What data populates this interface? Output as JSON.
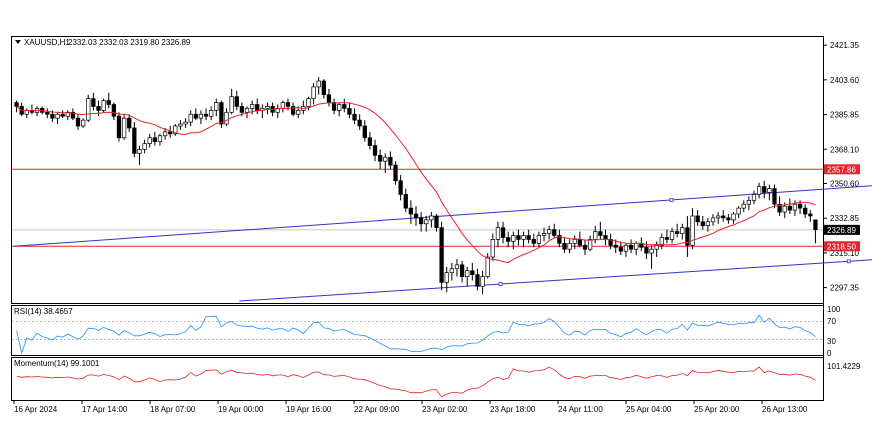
{
  "header": {
    "symbol": "XAUUSD,H1",
    "ohlc": "2332.03 2332.03 2319.80 2326.89"
  },
  "price_axis": {
    "ticks": [
      "2421.35",
      "2403.60",
      "2385.85",
      "2368.10",
      "2350.60",
      "2332.85",
      "2315.10",
      "2297.35"
    ],
    "tick_values": [
      2421.35,
      2403.6,
      2385.85,
      2368.1,
      2350.6,
      2332.85,
      2315.1,
      2297.35
    ],
    "markers": [
      {
        "label": "2357.86",
        "value": 2357.86,
        "color": "#e3242b",
        "text_color": "#ffffff"
      },
      {
        "label": "2326.89",
        "value": 2326.89,
        "color": "#000000",
        "text_color": "#ffffff"
      },
      {
        "label": "2318.50",
        "value": 2318.5,
        "color": "#e3242b",
        "text_color": "#ffffff"
      }
    ]
  },
  "rsi": {
    "label": "RSI(14) 38.4657",
    "ticks": [
      "100",
      "70",
      "30",
      "0"
    ],
    "color": "#1e90ff"
  },
  "momentum": {
    "label": "Momentum(14) 99.1001",
    "ticks": [
      "101.4229"
    ],
    "color": "#e3242b"
  },
  "time_axis": [
    "16 Apr 2024",
    "17 Apr 14:00",
    "18 Apr 07:00",
    "19 Apr 00:00",
    "19 Apr 16:00",
    "22 Apr 09:00",
    "23 Apr 02:00",
    "23 Apr 18:00",
    "24 Apr 11:00",
    "25 Apr 04:00",
    "25 Apr 20:00",
    "26 Apr 13:00"
  ],
  "colors": {
    "channel": "#3333cc",
    "hline": "#e3242b",
    "ma": "#e3242b"
  },
  "chart_data": {
    "type": "candlestick",
    "hlines": [
      2357.86,
      2318.5
    ],
    "current_price": 2326.89,
    "ylim": [
      2290,
      2425
    ],
    "channel": {
      "upper": [
        [
          0,
          2318.5
        ],
        [
          214,
          2358.0
        ]
      ],
      "lower": [
        [
          44,
          2290.5
        ],
        [
          214,
          2319.5
        ]
      ]
    },
    "ohlc": [
      [
        2392,
        2393,
        2387,
        2390
      ],
      [
        2390,
        2392,
        2385,
        2386
      ],
      [
        2386,
        2389,
        2384,
        2388
      ],
      [
        2388,
        2391,
        2386,
        2387
      ],
      [
        2387,
        2390,
        2385,
        2389
      ],
      [
        2389,
        2390,
        2386,
        2387
      ],
      [
        2387,
        2389,
        2384,
        2386
      ],
      [
        2386,
        2388,
        2382,
        2384
      ],
      [
        2384,
        2387,
        2381,
        2386
      ],
      [
        2386,
        2388,
        2384,
        2385
      ],
      [
        2385,
        2388,
        2383,
        2387
      ],
      [
        2387,
        2389,
        2383,
        2384
      ],
      [
        2384,
        2386,
        2378,
        2380
      ],
      [
        2380,
        2384,
        2379,
        2383
      ],
      [
        2383,
        2396,
        2382,
        2394
      ],
      [
        2394,
        2397,
        2388,
        2390
      ],
      [
        2390,
        2393,
        2385,
        2388
      ],
      [
        2388,
        2394,
        2387,
        2393
      ],
      [
        2393,
        2397,
        2389,
        2391
      ],
      [
        2391,
        2392,
        2383,
        2385
      ],
      [
        2385,
        2387,
        2372,
        2374
      ],
      [
        2374,
        2386,
        2373,
        2384
      ],
      [
        2384,
        2386,
        2377,
        2379
      ],
      [
        2379,
        2382,
        2364,
        2366
      ],
      [
        2366,
        2370,
        2360,
        2368
      ],
      [
        2368,
        2373,
        2366,
        2371
      ],
      [
        2371,
        2376,
        2369,
        2374
      ],
      [
        2374,
        2377,
        2370,
        2372
      ],
      [
        2372,
        2376,
        2370,
        2375
      ],
      [
        2375,
        2379,
        2373,
        2377
      ],
      [
        2377,
        2380,
        2374,
        2376
      ],
      [
        2376,
        2381,
        2375,
        2380
      ],
      [
        2380,
        2383,
        2378,
        2381
      ],
      [
        2381,
        2384,
        2379,
        2382
      ],
      [
        2382,
        2388,
        2380,
        2386
      ],
      [
        2386,
        2389,
        2383,
        2384
      ],
      [
        2384,
        2388,
        2381,
        2386
      ],
      [
        2386,
        2389,
        2383,
        2385
      ],
      [
        2385,
        2390,
        2383,
        2388
      ],
      [
        2388,
        2394,
        2385,
        2392
      ],
      [
        2392,
        2393,
        2379,
        2381
      ],
      [
        2381,
        2389,
        2380,
        2387
      ],
      [
        2387,
        2399,
        2386,
        2395
      ],
      [
        2395,
        2398,
        2388,
        2390
      ],
      [
        2390,
        2392,
        2385,
        2387
      ],
      [
        2387,
        2390,
        2384,
        2389
      ],
      [
        2389,
        2393,
        2386,
        2391
      ],
      [
        2391,
        2394,
        2386,
        2388
      ],
      [
        2388,
        2391,
        2384,
        2389
      ],
      [
        2389,
        2392,
        2386,
        2390
      ],
      [
        2390,
        2392,
        2385,
        2387
      ],
      [
        2387,
        2391,
        2384,
        2389
      ],
      [
        2389,
        2393,
        2387,
        2392
      ],
      [
        2392,
        2394,
        2388,
        2390
      ],
      [
        2390,
        2392,
        2385,
        2386
      ],
      [
        2386,
        2390,
        2384,
        2388
      ],
      [
        2388,
        2393,
        2386,
        2390
      ],
      [
        2390,
        2395,
        2388,
        2394
      ],
      [
        2394,
        2402,
        2391,
        2400
      ],
      [
        2400,
        2405,
        2396,
        2403
      ],
      [
        2403,
        2404,
        2394,
        2396
      ],
      [
        2396,
        2399,
        2390,
        2392
      ],
      [
        2392,
        2394,
        2386,
        2388
      ],
      [
        2388,
        2392,
        2385,
        2391
      ],
      [
        2391,
        2394,
        2387,
        2389
      ],
      [
        2389,
        2392,
        2384,
        2386
      ],
      [
        2386,
        2389,
        2381,
        2383
      ],
      [
        2383,
        2386,
        2378,
        2380
      ],
      [
        2380,
        2383,
        2372,
        2374
      ],
      [
        2374,
        2377,
        2368,
        2370
      ],
      [
        2370,
        2373,
        2362,
        2365
      ],
      [
        2365,
        2368,
        2358,
        2362
      ],
      [
        2362,
        2366,
        2356,
        2364
      ],
      [
        2364,
        2367,
        2358,
        2360
      ],
      [
        2360,
        2362,
        2350,
        2352
      ],
      [
        2352,
        2355,
        2342,
        2345
      ],
      [
        2345,
        2348,
        2336,
        2338
      ],
      [
        2338,
        2342,
        2330,
        2335
      ],
      [
        2335,
        2339,
        2329,
        2333
      ],
      [
        2333,
        2336,
        2326,
        2330
      ],
      [
        2330,
        2334,
        2326,
        2332
      ],
      [
        2332,
        2336,
        2328,
        2334
      ],
      [
        2334,
        2335,
        2326,
        2328
      ],
      [
        2328,
        2331,
        2296,
        2300
      ],
      [
        2300,
        2308,
        2295,
        2305
      ],
      [
        2305,
        2310,
        2301,
        2307
      ],
      [
        2307,
        2312,
        2303,
        2309
      ],
      [
        2309,
        2311,
        2300,
        2303
      ],
      [
        2303,
        2308,
        2298,
        2306
      ],
      [
        2306,
        2310,
        2301,
        2304
      ],
      [
        2304,
        2307,
        2296,
        2298
      ],
      [
        2298,
        2306,
        2294,
        2303
      ],
      [
        2303,
        2315,
        2302,
        2313
      ],
      [
        2313,
        2325,
        2311,
        2322
      ],
      [
        2322,
        2331,
        2318,
        2328
      ],
      [
        2328,
        2331,
        2320,
        2323
      ],
      [
        2323,
        2326,
        2318,
        2321
      ],
      [
        2321,
        2326,
        2317,
        2324
      ],
      [
        2324,
        2327,
        2319,
        2322
      ],
      [
        2322,
        2326,
        2318,
        2324
      ],
      [
        2324,
        2327,
        2320,
        2322
      ],
      [
        2322,
        2325,
        2318,
        2320
      ],
      [
        2320,
        2326,
        2318,
        2324
      ],
      [
        2324,
        2328,
        2321,
        2325
      ],
      [
        2325,
        2329,
        2322,
        2327
      ],
      [
        2327,
        2330,
        2323,
        2324
      ],
      [
        2324,
        2327,
        2318,
        2320
      ],
      [
        2320,
        2323,
        2315,
        2317
      ],
      [
        2317,
        2322,
        2315,
        2320
      ],
      [
        2320,
        2324,
        2317,
        2322
      ],
      [
        2322,
        2326,
        2318,
        2319
      ],
      [
        2319,
        2322,
        2314,
        2317
      ],
      [
        2317,
        2324,
        2316,
        2322
      ],
      [
        2322,
        2329,
        2320,
        2326
      ],
      [
        2326,
        2331,
        2322,
        2324
      ],
      [
        2324,
        2327,
        2319,
        2322
      ],
      [
        2322,
        2325,
        2317,
        2319
      ],
      [
        2319,
        2322,
        2315,
        2318
      ],
      [
        2318,
        2321,
        2314,
        2316
      ],
      [
        2316,
        2320,
        2313,
        2319
      ],
      [
        2319,
        2322,
        2315,
        2317
      ],
      [
        2317,
        2321,
        2314,
        2320
      ],
      [
        2320,
        2323,
        2316,
        2318
      ],
      [
        2318,
        2321,
        2312,
        2315
      ],
      [
        2315,
        2319,
        2307,
        2317
      ],
      [
        2317,
        2321,
        2313,
        2319
      ],
      [
        2319,
        2325,
        2317,
        2323
      ],
      [
        2323,
        2327,
        2320,
        2322
      ],
      [
        2322,
        2328,
        2320,
        2326
      ],
      [
        2326,
        2330,
        2323,
        2325
      ],
      [
        2325,
        2330,
        2322,
        2328
      ],
      [
        2328,
        2334,
        2313,
        2319
      ],
      [
        2319,
        2338,
        2317,
        2334
      ],
      [
        2334,
        2337,
        2329,
        2331
      ],
      [
        2331,
        2334,
        2327,
        2329
      ],
      [
        2329,
        2333,
        2326,
        2331
      ],
      [
        2331,
        2335,
        2329,
        2333
      ],
      [
        2333,
        2336,
        2330,
        2334
      ],
      [
        2334,
        2337,
        2331,
        2333
      ],
      [
        2333,
        2335,
        2330,
        2332
      ],
      [
        2332,
        2336,
        2330,
        2335
      ],
      [
        2335,
        2339,
        2333,
        2338
      ],
      [
        2338,
        2342,
        2336,
        2340
      ],
      [
        2340,
        2344,
        2337,
        2342
      ],
      [
        2342,
        2347,
        2340,
        2345
      ],
      [
        2345,
        2351,
        2343,
        2349
      ],
      [
        2349,
        2352,
        2343,
        2346
      ],
      [
        2346,
        2350,
        2342,
        2348
      ],
      [
        2348,
        2350,
        2338,
        2340
      ],
      [
        2340,
        2344,
        2334,
        2336
      ],
      [
        2336,
        2341,
        2333,
        2339
      ],
      [
        2339,
        2343,
        2335,
        2337
      ],
      [
        2337,
        2342,
        2334,
        2340
      ],
      [
        2340,
        2342,
        2335,
        2338
      ],
      [
        2338,
        2340,
        2333,
        2335
      ],
      [
        2335,
        2337,
        2331,
        2334
      ],
      [
        2332,
        2332,
        2320,
        2327
      ]
    ]
  }
}
